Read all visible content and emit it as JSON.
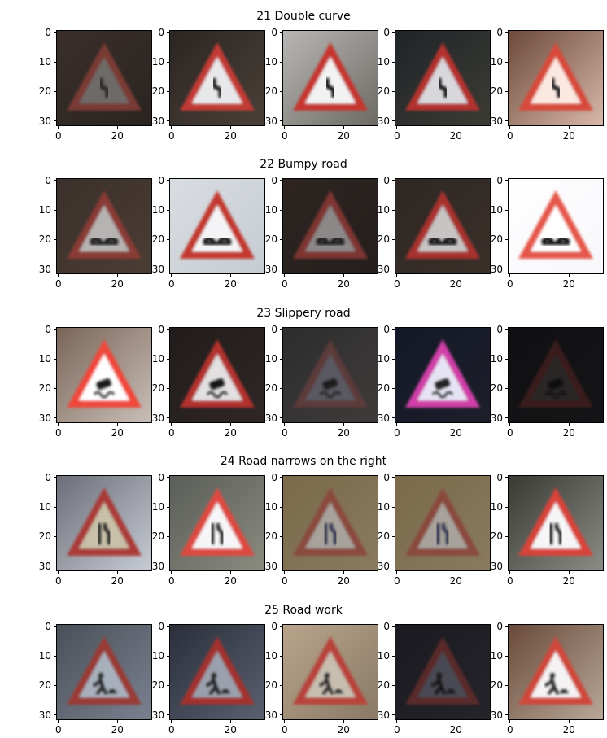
{
  "figure": {
    "rows": [
      {
        "title": "21 Double curve",
        "sign": "triangle",
        "symbol": "double-curve-icon",
        "thumbs": [
          {
            "bg": "#3a2f2a",
            "bg2": "#2a2420",
            "border": "#7a3a35",
            "inner": "#6e6a68",
            "glyph": "#2a2626"
          },
          {
            "bg": "#2b2522",
            "bg2": "#4a4038",
            "border": "#c23a36",
            "inner": "#e8e8ea",
            "glyph": "#1a1a1c"
          },
          {
            "bg": "#b9b7b5",
            "bg2": "#6c6a63",
            "border": "#c6342f",
            "inner": "#f2f2f2",
            "glyph": "#111111"
          },
          {
            "bg": "#1f2428",
            "bg2": "#3c3c34",
            "border": "#b4332f",
            "inner": "#d8d8dc",
            "glyph": "#151515"
          },
          {
            "bg": "#6b4a3c",
            "bg2": "#d8b8a8",
            "border": "#d84a3a",
            "inner": "#fbe8e0",
            "glyph": "#222222"
          }
        ]
      },
      {
        "title": "22 Bumpy road",
        "sign": "triangle",
        "symbol": "bumpy-road-icon",
        "thumbs": [
          {
            "bg": "#3b302b",
            "bg2": "#4a3d34",
            "border": "#8a3a34",
            "inner": "#b7b3b2",
            "glyph": "#1a1a1a"
          },
          {
            "bg": "#d9dde2",
            "bg2": "#c6ccd2",
            "border": "#c2392f",
            "inner": "#f4f4f6",
            "glyph": "#121212"
          },
          {
            "bg": "#2e2522",
            "bg2": "#241e1c",
            "border": "#7e3430",
            "inner": "#8c8888",
            "glyph": "#1b1b1b"
          },
          {
            "bg": "#2e2723",
            "bg2": "#3a302a",
            "border": "#a8322d",
            "inner": "#c8c4c4",
            "glyph": "#161616"
          },
          {
            "bg": "#ffffff",
            "bg2": "#f7f7fb",
            "border": "#e4574a",
            "inner": "#ffffff",
            "glyph": "#101010"
          }
        ]
      },
      {
        "title": "23 Slippery road",
        "sign": "triangle",
        "symbol": "slippery-road-icon",
        "thumbs": [
          {
            "bg": "#7a6558",
            "bg2": "#c9bfb8",
            "border": "#f0463a",
            "inner": "#ffffff",
            "glyph": "#1c1c1c"
          },
          {
            "bg": "#211c1b",
            "bg2": "#2f2725",
            "border": "#b2322e",
            "inner": "#e2e0e0",
            "glyph": "#141414"
          },
          {
            "bg": "#2d2d2e",
            "bg2": "#3f3b3a",
            "border": "#5b3a3a",
            "inner": "#5a5860",
            "glyph": "#1c1c1c"
          },
          {
            "bg": "#141826",
            "bg2": "#1d1f2a",
            "border": "#d040a8",
            "inner": "#e6e4f4",
            "glyph": "#222222"
          },
          {
            "bg": "#101013",
            "bg2": "#151518",
            "border": "#3a1a1a",
            "inner": "#2a2828",
            "glyph": "#0c0c0c"
          }
        ]
      },
      {
        "title": "24 Road narrows on the right",
        "sign": "triangle",
        "symbol": "road-narrows-right-icon",
        "thumbs": [
          {
            "bg": "#6b6e78",
            "bg2": "#c8ccd4",
            "border": "#aa3a38",
            "inner": "#c8c0a8",
            "glyph": "#1d1d1d"
          },
          {
            "bg": "#5a5e58",
            "bg2": "#8a8a80",
            "border": "#dd4a40",
            "inner": "#f6f6f8",
            "glyph": "#1a1a1a"
          },
          {
            "bg": "#7a6a4a",
            "bg2": "#8a7a60",
            "border": "#8a4a3c",
            "inner": "#a8a29c",
            "glyph": "#2a2f4a"
          },
          {
            "bg": "#7a6a4a",
            "bg2": "#8a7a60",
            "border": "#8a4a3c",
            "inner": "#a8a29c",
            "glyph": "#2a2f4a"
          },
          {
            "bg": "#3a3a34",
            "bg2": "#8a8c86",
            "border": "#d84238",
            "inner": "#f6f6f8",
            "glyph": "#141414"
          }
        ]
      },
      {
        "title": "25 Road work",
        "sign": "triangle",
        "symbol": "road-work-icon",
        "thumbs": [
          {
            "bg": "#4a5058",
            "bg2": "#7a8290",
            "border": "#9a3a36",
            "inner": "#a8b0bc",
            "glyph": "#1c1c1c"
          },
          {
            "bg": "#2a2f3a",
            "bg2": "#5a6070",
            "border": "#a2322e",
            "inner": "#9aa0ac",
            "glyph": "#181818"
          },
          {
            "bg": "#b8a48a",
            "bg2": "#8a7a66",
            "border": "#b8423a",
            "inner": "#c8beb0",
            "glyph": "#242424"
          },
          {
            "bg": "#1a1a20",
            "bg2": "#24242a",
            "border": "#5a2a2a",
            "inner": "#4a4a52",
            "glyph": "#101010"
          },
          {
            "bg": "#6a4a3a",
            "bg2": "#b8a898",
            "border": "#d0463a",
            "inner": "#f4f2f2",
            "glyph": "#161616"
          }
        ]
      }
    ],
    "axes": {
      "y_ticks": [
        "0",
        "10",
        "20",
        "30"
      ],
      "x_ticks": [
        "0",
        "20"
      ],
      "y_tick_values": [
        0,
        10,
        20,
        30
      ],
      "x_tick_values": [
        0,
        20
      ],
      "image_size": 32
    }
  }
}
